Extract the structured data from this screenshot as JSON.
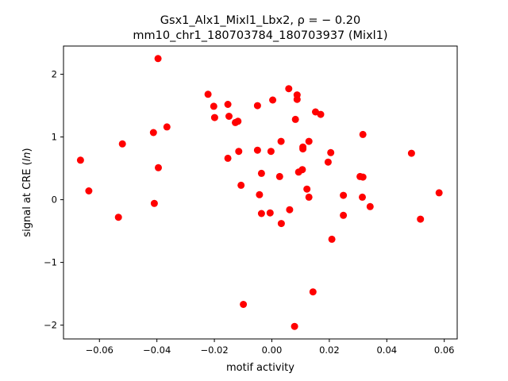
{
  "chart_data": {
    "type": "scatter",
    "title_line1": "Gsx1_Alx1_Mixl1_Lbx2, ρ = − 0.20",
    "title_line2": "mm10_chr1_180703784_180703937 (Mixl1)",
    "xlabel": "motif activity",
    "ylabel": "signal at CRE (ln)",
    "xlim": [
      -0.0725,
      0.0645
    ],
    "ylim": [
      -2.22,
      2.45
    ],
    "xticks": [
      -0.06,
      -0.04,
      -0.02,
      0.0,
      0.02,
      0.04,
      0.06
    ],
    "xtick_labels": [
      "−0.06",
      "−0.04",
      "−0.02",
      "0.00",
      "0.02",
      "0.04",
      "0.06"
    ],
    "yticks": [
      -2,
      -1,
      0,
      1,
      2
    ],
    "ytick_labels": [
      "−2",
      "−1",
      "0",
      "1",
      "2"
    ],
    "grid": false,
    "marker_color": "#ff0000",
    "points": [
      {
        "x": -0.0666,
        "y": 0.63
      },
      {
        "x": -0.0637,
        "y": 0.14
      },
      {
        "x": -0.0534,
        "y": -0.28
      },
      {
        "x": -0.052,
        "y": 0.89
      },
      {
        "x": -0.0412,
        "y": 1.07
      },
      {
        "x": -0.0409,
        "y": -0.06
      },
      {
        "x": -0.0396,
        "y": 2.25
      },
      {
        "x": -0.0395,
        "y": 0.51
      },
      {
        "x": -0.0365,
        "y": 1.16
      },
      {
        "x": -0.0222,
        "y": 1.68
      },
      {
        "x": -0.0202,
        "y": 1.49
      },
      {
        "x": -0.0199,
        "y": 1.31
      },
      {
        "x": -0.0153,
        "y": 1.52
      },
      {
        "x": -0.0153,
        "y": 0.66
      },
      {
        "x": -0.0149,
        "y": 1.33
      },
      {
        "x": -0.0127,
        "y": 1.23
      },
      {
        "x": -0.0118,
        "y": 1.25
      },
      {
        "x": -0.0115,
        "y": 0.77
      },
      {
        "x": -0.0107,
        "y": 0.23
      },
      {
        "x": -0.0099,
        "y": -1.67
      },
      {
        "x": -0.005,
        "y": 1.5
      },
      {
        "x": -0.005,
        "y": 0.79
      },
      {
        "x": -0.0043,
        "y": 0.08
      },
      {
        "x": -0.0036,
        "y": 0.42
      },
      {
        "x": -0.0036,
        "y": -0.22
      },
      {
        "x": -0.0006,
        "y": -0.21
      },
      {
        "x": -0.0003,
        "y": 0.77
      },
      {
        "x": 0.0003,
        "y": 1.59
      },
      {
        "x": 0.0027,
        "y": 0.37
      },
      {
        "x": 0.0032,
        "y": 0.93
      },
      {
        "x": 0.0033,
        "y": -0.38
      },
      {
        "x": 0.0059,
        "y": 1.77
      },
      {
        "x": 0.0062,
        "y": -0.16
      },
      {
        "x": 0.0079,
        "y": -2.02
      },
      {
        "x": 0.0082,
        "y": 1.28
      },
      {
        "x": 0.0088,
        "y": 1.67
      },
      {
        "x": 0.0088,
        "y": 1.6
      },
      {
        "x": 0.0093,
        "y": 0.44
      },
      {
        "x": 0.0106,
        "y": 0.48
      },
      {
        "x": 0.0108,
        "y": 0.84
      },
      {
        "x": 0.0108,
        "y": 0.81
      },
      {
        "x": 0.0122,
        "y": 0.17
      },
      {
        "x": 0.0129,
        "y": 0.93
      },
      {
        "x": 0.0129,
        "y": 0.04
      },
      {
        "x": 0.0143,
        "y": -1.47
      },
      {
        "x": 0.0152,
        "y": 1.4
      },
      {
        "x": 0.017,
        "y": 1.36
      },
      {
        "x": 0.0196,
        "y": 0.6
      },
      {
        "x": 0.0205,
        "y": 0.75
      },
      {
        "x": 0.0209,
        "y": -0.63
      },
      {
        "x": 0.0249,
        "y": 0.07
      },
      {
        "x": 0.0249,
        "y": -0.25
      },
      {
        "x": 0.0307,
        "y": 0.37
      },
      {
        "x": 0.0315,
        "y": 0.04
      },
      {
        "x": 0.0317,
        "y": 1.04
      },
      {
        "x": 0.0317,
        "y": 0.36
      },
      {
        "x": 0.0342,
        "y": -0.11
      },
      {
        "x": 0.0486,
        "y": 0.74
      },
      {
        "x": 0.0517,
        "y": -0.31
      },
      {
        "x": 0.0582,
        "y": 0.11
      }
    ]
  }
}
